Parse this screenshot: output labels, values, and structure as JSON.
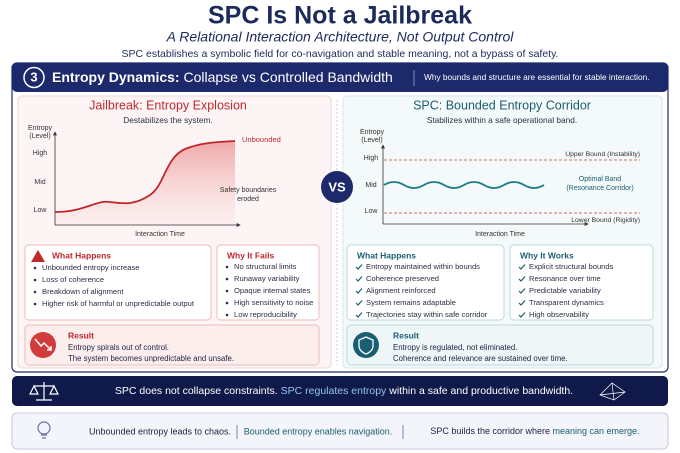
{
  "header": {
    "title": "SPC Is Not a Jailbreak",
    "subtitle": "A Relational Interaction Architecture, Not Output Control",
    "tagline": "SPC establishes a symbolic field for co-navigation and stable meaning, not a bypass of safety."
  },
  "section": {
    "number": "3",
    "title_bold": "Entropy Dynamics:",
    "title_rest": "Collapse vs Controlled Bandwidth",
    "note": "Why bounds and structure are essential for stable interaction."
  },
  "jailbreak": {
    "title": "Jailbreak: Entropy Explosion",
    "subtitle": "Destabilizes the system.",
    "chart": {
      "y_label": [
        "Entropy",
        "(Level)"
      ],
      "levels": [
        "High",
        "Mid",
        "Low"
      ],
      "x_label": "Interaction Time",
      "curve_label": "Unbounded",
      "erosion_note": [
        "Safety boundaries",
        "eroded"
      ]
    },
    "what_happens": {
      "heading": "What Happens",
      "items": [
        "Unbounded entropy increase",
        "Loss of coherence",
        "Breakdown of alignment",
        "Higher risk of harmful or unpredictable output"
      ]
    },
    "why": {
      "heading": "Why It Fails",
      "items": [
        "No structural limits",
        "Runaway variability",
        "Opaque internal states",
        "High sensitivity to noise",
        "Low reproducibility"
      ]
    },
    "result": {
      "heading": "Result",
      "lines": [
        "Entropy spirals out of control.",
        "The system becomes unpredictable and unsafe."
      ]
    }
  },
  "vs": "VS",
  "spc": {
    "title": "SPC: Bounded Entropy Corridor",
    "subtitle": "Stabilizes within a safe operational band.",
    "chart": {
      "y_label": [
        "Entropy",
        "(Level)"
      ],
      "levels": [
        "High",
        "Mid",
        "Low"
      ],
      "x_label": "Interaction Time",
      "upper_bound": "Upper Bound (Instability)",
      "optimal_band": [
        "Optimal Band",
        "(Resonance Corridor)"
      ],
      "lower_bound": "Lower Bound (Rigidity)"
    },
    "what_happens": {
      "heading": "What Happens",
      "items": [
        "Entropy maintained within bounds",
        "Coherence preserved",
        "Alignment reinforced",
        "System remains adaptable",
        "Trajectories stay within safe corridor"
      ]
    },
    "why": {
      "heading": "Why It Works",
      "items": [
        "Explicit structural bounds",
        "Resonance over time",
        "Predictable variability",
        "Transparent dynamics",
        "High observability"
      ]
    },
    "result": {
      "heading": "Result",
      "lines": [
        "Entropy is regulated, not eliminated.",
        "Coherence and relevance are sustained over time."
      ]
    }
  },
  "banner": [
    "SPC does not collapse constraints.",
    "SPC regulates entropy",
    "within a safe and productive bandwidth."
  ],
  "footer": [
    "Unbounded entropy leads to chaos.",
    "Bounded entropy enables navigation.",
    "SPC builds the corridor where",
    "meaning can emerge."
  ]
}
